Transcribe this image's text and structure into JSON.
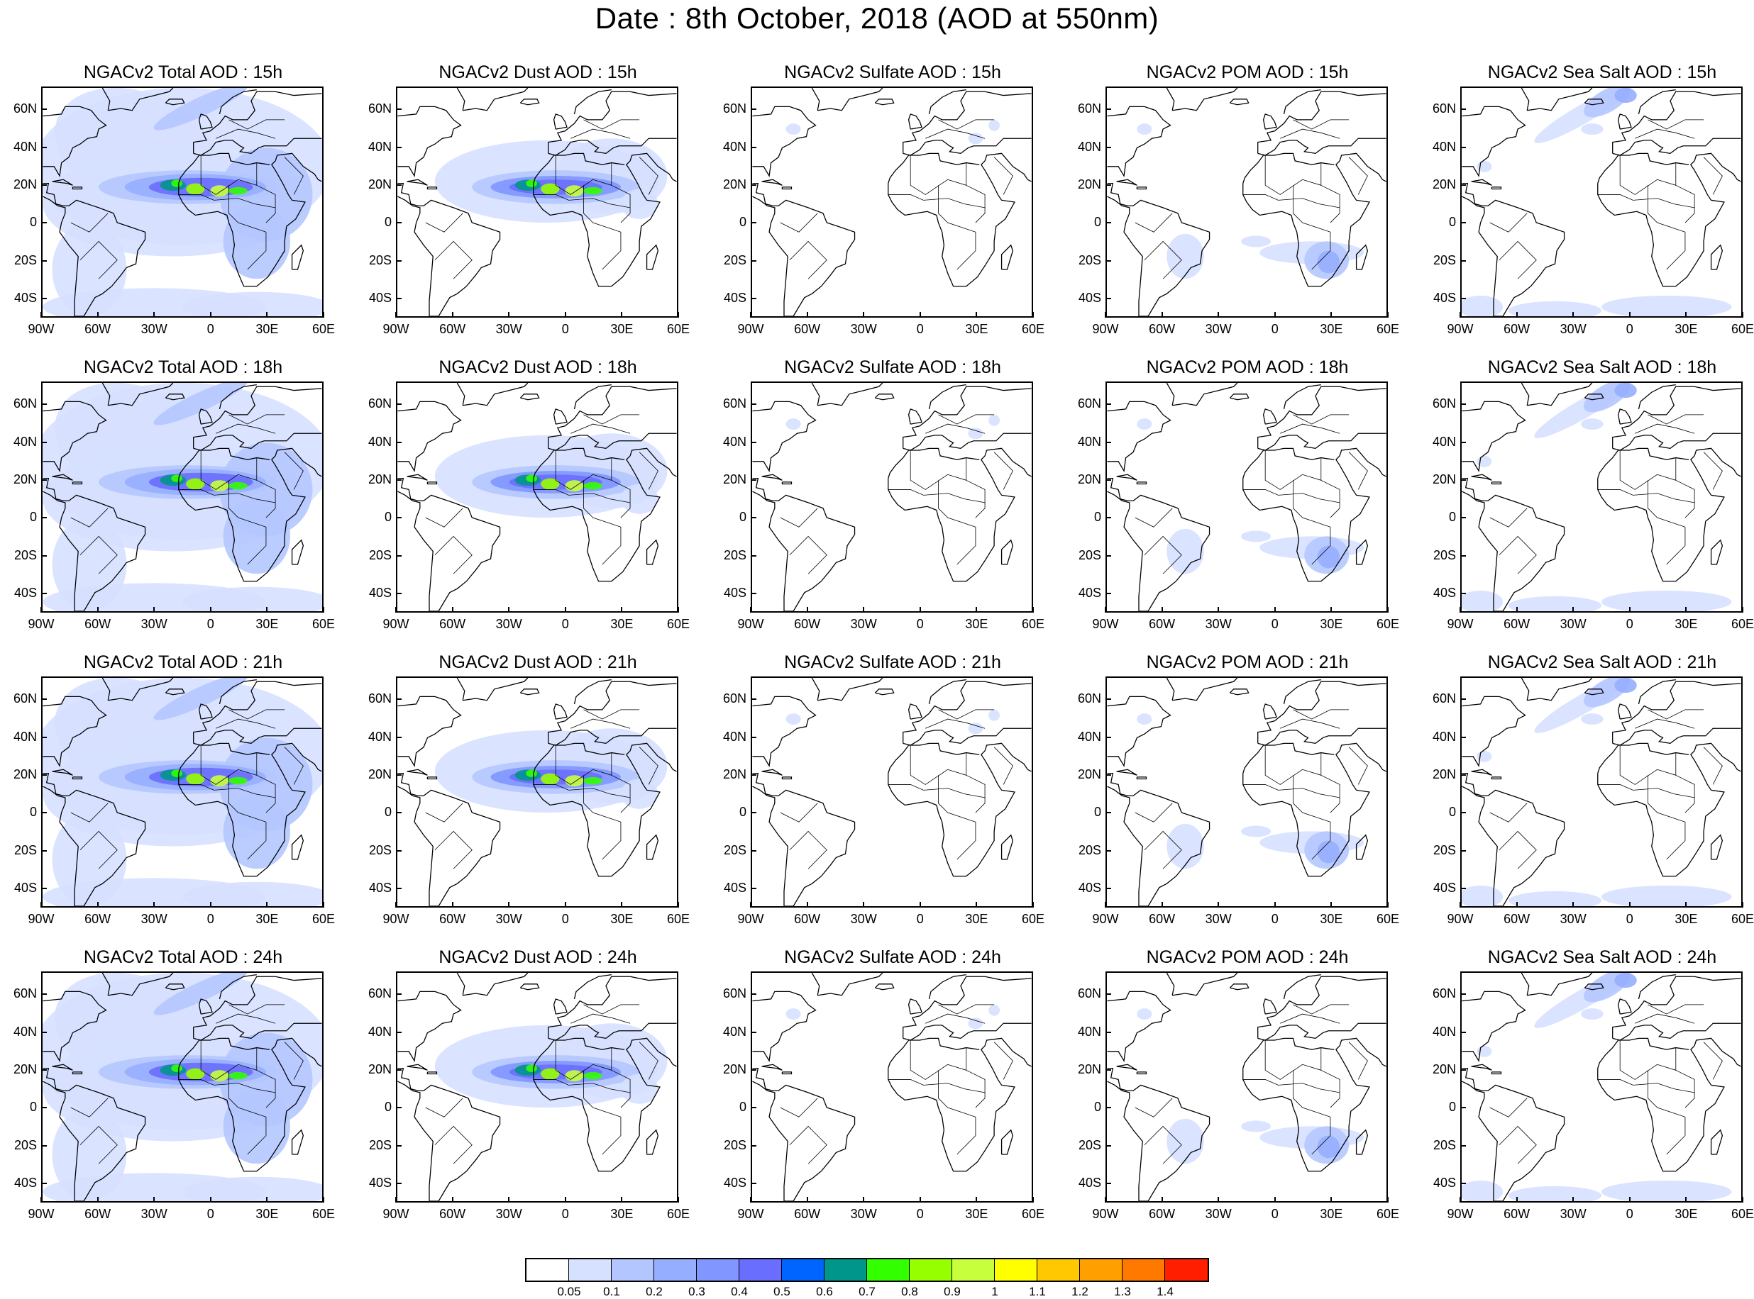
{
  "title": "Date : 8th October, 2018 (AOD at 550nm)",
  "panels": [
    {
      "title": "NGACv2 Total AOD : 15h",
      "species": "total",
      "hour": 15
    },
    {
      "title": "NGACv2 Dust AOD : 15h",
      "species": "dust",
      "hour": 15
    },
    {
      "title": "NGACv2 Sulfate AOD : 15h",
      "species": "sulfate",
      "hour": 15
    },
    {
      "title": "NGACv2 POM AOD : 15h",
      "species": "pom",
      "hour": 15
    },
    {
      "title": "NGACv2 Sea Salt AOD : 15h",
      "species": "seasalt",
      "hour": 15
    },
    {
      "title": "NGACv2 Total AOD : 18h",
      "species": "total",
      "hour": 18
    },
    {
      "title": "NGACv2 Dust AOD : 18h",
      "species": "dust",
      "hour": 18
    },
    {
      "title": "NGACv2 Sulfate AOD : 18h",
      "species": "sulfate",
      "hour": 18
    },
    {
      "title": "NGACv2 POM AOD : 18h",
      "species": "pom",
      "hour": 18
    },
    {
      "title": "NGACv2 Sea Salt AOD : 18h",
      "species": "seasalt",
      "hour": 18
    },
    {
      "title": "NGACv2 Total AOD : 21h",
      "species": "total",
      "hour": 21
    },
    {
      "title": "NGACv2 Dust AOD : 21h",
      "species": "dust",
      "hour": 21
    },
    {
      "title": "NGACv2 Sulfate AOD : 21h",
      "species": "sulfate",
      "hour": 21
    },
    {
      "title": "NGACv2 POM AOD : 21h",
      "species": "pom",
      "hour": 21
    },
    {
      "title": "NGACv2 Sea Salt AOD : 21h",
      "species": "seasalt",
      "hour": 21
    },
    {
      "title": "NGACv2 Total AOD : 24h",
      "species": "total",
      "hour": 24
    },
    {
      "title": "NGACv2 Dust AOD : 24h",
      "species": "dust",
      "hour": 24
    },
    {
      "title": "NGACv2 Sulfate AOD : 24h",
      "species": "sulfate",
      "hour": 24
    },
    {
      "title": "NGACv2 POM AOD : 24h",
      "species": "pom",
      "hour": 24
    },
    {
      "title": "NGACv2 Sea Salt  AOD : 24h",
      "species": "seasalt",
      "hour": 24
    }
  ],
  "axes": {
    "lat_labels": [
      "60N",
      "40N",
      "20N",
      "0",
      "20S",
      "40S"
    ],
    "lat_values": [
      60,
      40,
      20,
      0,
      -20,
      -40
    ],
    "lon_labels": [
      "90W",
      "60W",
      "30W",
      "0",
      "30E",
      "60E"
    ],
    "lon_values": [
      -90,
      -60,
      -30,
      0,
      30,
      60
    ],
    "lon_range": [
      -90,
      60
    ],
    "lat_range": [
      -50,
      72
    ]
  },
  "colorbar": {
    "colors": [
      "#ffffff",
      "#d6e0ff",
      "#b4c6ff",
      "#96aeff",
      "#8196ff",
      "#6a6eff",
      "#0064ff",
      "#00968c",
      "#32ff00",
      "#96ff00",
      "#c8ff3c",
      "#ffff00",
      "#ffc800",
      "#ffa000",
      "#ff7800",
      "#ff1e00"
    ],
    "labels": [
      "0.05",
      "0.1",
      "0.2",
      "0.3",
      "0.4",
      "0.5",
      "0.6",
      "0.7",
      "0.8",
      "0.9",
      "1",
      "1.1",
      "1.2",
      "1.3",
      "1.4"
    ]
  }
}
